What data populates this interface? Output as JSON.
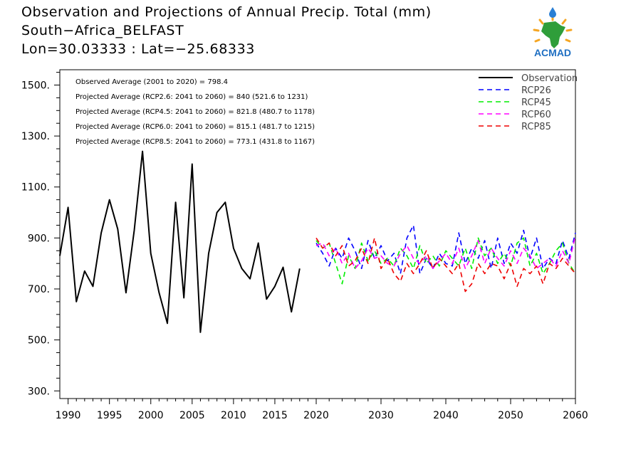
{
  "title_lines": [
    "Observation and Projections of Annual Precip. Total (mm)",
    "South−Africa_BELFAST",
    "Lon=30.03333 : Lat=−25.68333"
  ],
  "logo": {
    "text": "ACMAD"
  },
  "colors": {
    "Observation": "#000000",
    "RCP26": "#0000ff",
    "RCP45": "#00ee00",
    "RCP60": "#ff00ff",
    "RCP85": "#ee0000"
  },
  "chart_data": {
    "type": "line",
    "ylim": [
      270,
      1560
    ],
    "y_ticks": [
      300,
      500,
      700,
      900,
      1100,
      1300,
      1500
    ],
    "y_tick_labels": [
      "300.",
      "500.",
      "700.",
      "900.",
      "1100.",
      "1300.",
      "1500."
    ],
    "x_tick_labels": [
      {
        "label": "1990",
        "x": 1990
      },
      {
        "label": "1995",
        "x": 1995
      },
      {
        "label": "2000",
        "x": 2000
      },
      {
        "label": "2005",
        "x": 2005
      },
      {
        "label": "2010",
        "x": 2010
      },
      {
        "label": "2015",
        "x": 2015
      },
      {
        "label": "2020",
        "x": 2020
      },
      {
        "label": "2030",
        "x": 2030
      },
      {
        "label": "2040",
        "x": 2040
      },
      {
        "label": "2050",
        "x": 2050
      },
      {
        "label": "2060",
        "x": 2060
      }
    ],
    "annotations": [
      "Observed Average (2001 to 2020) = 798.4",
      "Projected Average (RCP2.6: 2041 to 2060) = 840 (521.6 to 1231)",
      "Projected Average (RCP4.5: 2041 to 2060) = 821.8 (480.7 to 1178)",
      "Projected Average (RCP6.0: 2041 to 2060) = 815.1 (481.7 to 1215)",
      "Projected Average (RCP8.5: 2041 to 2060) = 773.1 (431.8 to 1167)"
    ],
    "legend": [
      "Observation",
      "RCP26",
      "RCP45",
      "RCP60",
      "RCP85"
    ],
    "series": [
      {
        "name": "Observation",
        "x": [
          1989,
          1990,
          1991,
          1992,
          1993,
          1994,
          1995,
          1996,
          1997,
          1998,
          1999,
          2000,
          2001,
          2002,
          2003,
          2004,
          2005,
          2006,
          2007,
          2008,
          2009,
          2010,
          2011,
          2012,
          2013,
          2014,
          2015,
          2016,
          2017,
          2018,
          2019,
          2020
        ],
        "values": [
          830,
          1020,
          650,
          770,
          710,
          920,
          1050,
          935,
          685,
          930,
          1240,
          840,
          685,
          565,
          1040,
          665,
          1190,
          530,
          840,
          1000,
          1040,
          860,
          780,
          740,
          880,
          660,
          710,
          785,
          610,
          780,
          null,
          null
        ]
      },
      {
        "name": "RCP26",
        "x": [
          2020,
          2021,
          2022,
          2023,
          2024,
          2025,
          2026,
          2027,
          2028,
          2029,
          2030,
          2031,
          2032,
          2033,
          2034,
          2035,
          2036,
          2037,
          2038,
          2039,
          2040,
          2041,
          2042,
          2043,
          2044,
          2045,
          2046,
          2047,
          2048,
          2049,
          2050,
          2051,
          2052,
          2053,
          2054,
          2055,
          2056,
          2057,
          2058,
          2059,
          2060
        ],
        "values": [
          880,
          840,
          790,
          860,
          820,
          900,
          850,
          780,
          890,
          820,
          870,
          810,
          840,
          760,
          900,
          950,
          760,
          820,
          780,
          840,
          800,
          790,
          920,
          800,
          860,
          820,
          890,
          780,
          900,
          800,
          880,
          840,
          930,
          820,
          900,
          780,
          820,
          800,
          890,
          820,
          920
        ]
      },
      {
        "name": "RCP45",
        "x": [
          2020,
          2021,
          2022,
          2023,
          2024,
          2025,
          2026,
          2027,
          2028,
          2029,
          2030,
          2031,
          2032,
          2033,
          2034,
          2035,
          2036,
          2037,
          2038,
          2039,
          2040,
          2041,
          2042,
          2043,
          2044,
          2045,
          2046,
          2047,
          2048,
          2049,
          2050,
          2051,
          2052,
          2053,
          2054,
          2055,
          2056,
          2057,
          2058,
          2059,
          2060
        ],
        "values": [
          890,
          860,
          880,
          800,
          720,
          830,
          780,
          880,
          810,
          850,
          800,
          820,
          790,
          860,
          830,
          780,
          870,
          800,
          830,
          790,
          850,
          820,
          790,
          860,
          780,
          900,
          830,
          860,
          800,
          840,
          790,
          880,
          900,
          790,
          840,
          760,
          800,
          850,
          880,
          800,
          760
        ]
      },
      {
        "name": "RCP60",
        "x": [
          2020,
          2021,
          2022,
          2023,
          2024,
          2025,
          2026,
          2027,
          2028,
          2029,
          2030,
          2031,
          2032,
          2033,
          2034,
          2035,
          2036,
          2037,
          2038,
          2039,
          2040,
          2041,
          2042,
          2043,
          2044,
          2045,
          2046,
          2047,
          2048,
          2049,
          2050,
          2051,
          2052,
          2053,
          2054,
          2055,
          2056,
          2057,
          2058,
          2059,
          2060
        ],
        "values": [
          870,
          880,
          830,
          860,
          800,
          840,
          780,
          810,
          860,
          820,
          830,
          800,
          790,
          840,
          870,
          820,
          800,
          830,
          780,
          810,
          840,
          800,
          860,
          780,
          830,
          890,
          800,
          860,
          820,
          790,
          850,
          800,
          860,
          830,
          780,
          800,
          820,
          790,
          850,
          800,
          910
        ]
      },
      {
        "name": "RCP85",
        "x": [
          2020,
          2021,
          2022,
          2023,
          2024,
          2025,
          2026,
          2027,
          2028,
          2029,
          2030,
          2031,
          2032,
          2033,
          2034,
          2035,
          2036,
          2037,
          2038,
          2039,
          2040,
          2041,
          2042,
          2043,
          2044,
          2045,
          2046,
          2047,
          2048,
          2049,
          2050,
          2051,
          2052,
          2053,
          2054,
          2055,
          2056,
          2057,
          2058,
          2059,
          2060
        ],
        "values": [
          900,
          860,
          880,
          830,
          870,
          790,
          810,
          860,
          800,
          900,
          780,
          820,
          760,
          730,
          800,
          760,
          800,
          850,
          780,
          820,
          790,
          760,
          800,
          690,
          720,
          800,
          760,
          800,
          790,
          740,
          800,
          710,
          780,
          760,
          790,
          720,
          800,
          780,
          820,
          790,
          760
        ]
      }
    ]
  }
}
